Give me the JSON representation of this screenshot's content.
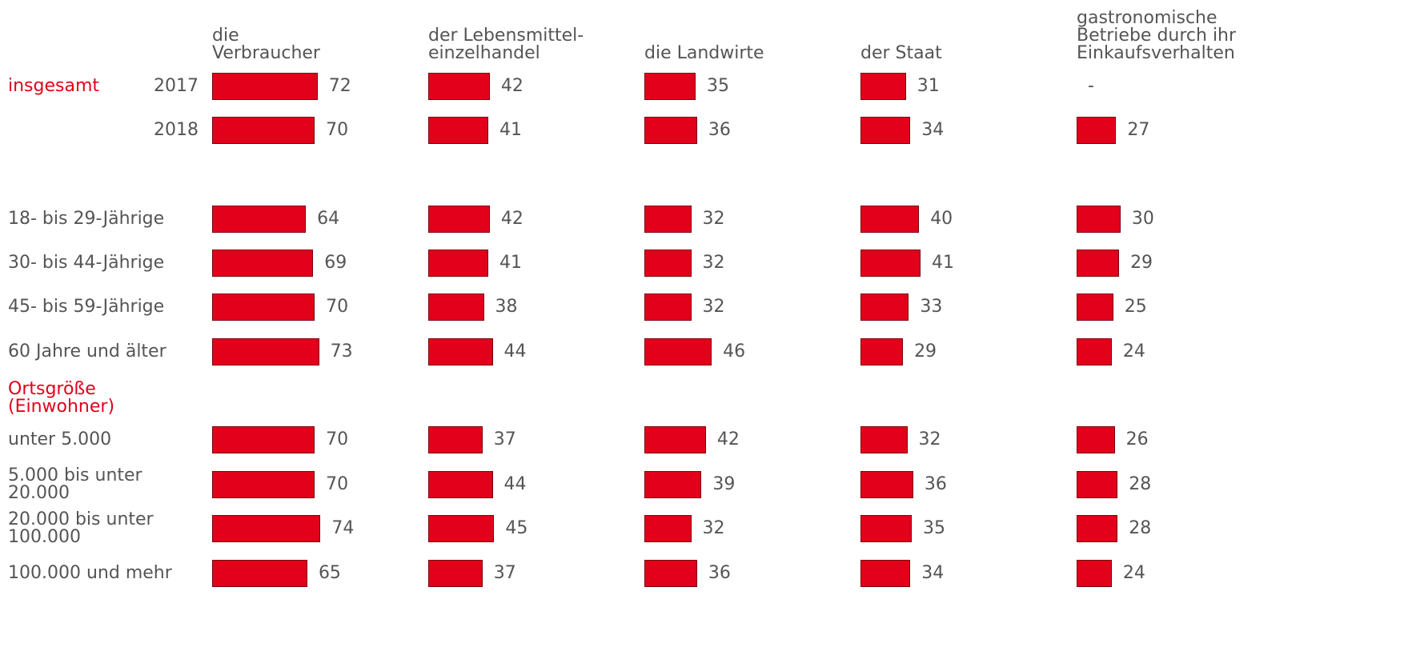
{
  "chart_data": {
    "type": "bar",
    "orientation": "horizontal",
    "color": "#e2001a",
    "xlim": [
      0,
      100
    ],
    "group_labels": [
      "insgesamt",
      "Ortsgröße\n(Einwohner)"
    ],
    "categories": [
      "2017",
      "2018",
      "18- bis 29-Jährige",
      "30- bis 44-Jährige",
      "45- bis 59-Jährige",
      "60 Jahre und älter",
      "unter 5.000",
      "5.000 bis unter\n20.000",
      "20.000 bis unter\n100.000",
      "100.000 und mehr"
    ],
    "series": [
      {
        "name": "die\nVerbraucher",
        "values": [
          72,
          70,
          64,
          69,
          70,
          73,
          70,
          70,
          74,
          65
        ]
      },
      {
        "name": "der Lebensmittel-\neinzelhandel",
        "values": [
          42,
          41,
          42,
          41,
          38,
          44,
          37,
          44,
          45,
          37
        ]
      },
      {
        "name": "die Landwirte",
        "values": [
          35,
          36,
          32,
          32,
          32,
          46,
          42,
          39,
          32,
          36
        ]
      },
      {
        "name": "der Staat",
        "values": [
          31,
          34,
          40,
          41,
          33,
          29,
          32,
          36,
          35,
          34
        ]
      },
      {
        "name": "gastronomische\nBetriebe durch ihr\nEinkaufsverhalten",
        "values": [
          null,
          27,
          30,
          29,
          25,
          24,
          26,
          28,
          28,
          24
        ],
        "value_labels": [
          "-",
          "27",
          "30",
          "29",
          "25",
          "24",
          "26",
          "28",
          "28",
          "24"
        ]
      }
    ]
  }
}
